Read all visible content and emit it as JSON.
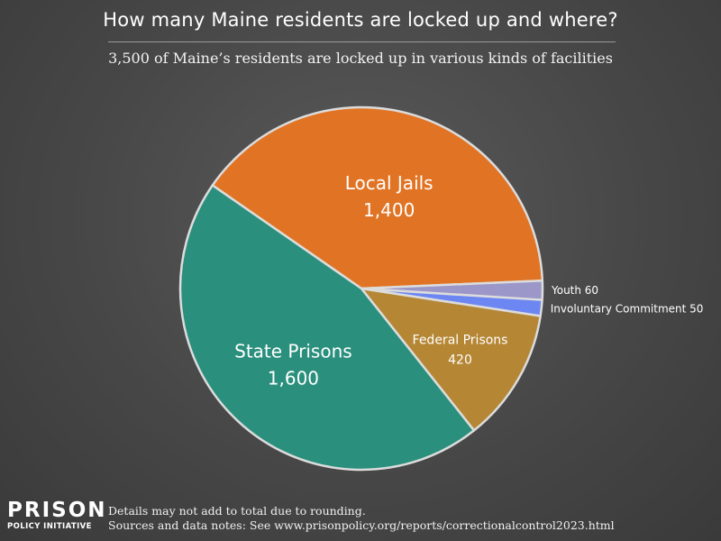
{
  "header": {
    "title": "How many Maine residents are locked up and where?",
    "subtitle": "3,500 of Maine’s residents are locked up in various kinds of facilities"
  },
  "footer": {
    "logo_line1": "PRISON",
    "logo_line2": "POLICY INITIATIVE",
    "note1": "Details may not add to total due to rounding.",
    "note2": "Sources and data notes: See www.prisonpolicy.org/reports/correctionalcontrol2023.html"
  },
  "chart_data": {
    "type": "pie",
    "title": "How many Maine residents are locked up and where?",
    "subtitle": "3,500 of Maine’s residents are locked up in various kinds of facilities",
    "slices": [
      {
        "label": "Local Jails",
        "value": 1400,
        "value_label": "1,400",
        "color": "#e17424",
        "label_style": "inside-large"
      },
      {
        "label": "Youth",
        "value": 60,
        "value_label": "60",
        "color": "#9b97c9",
        "label_style": "outside"
      },
      {
        "label": "Involuntary Commitment",
        "value": 50,
        "value_label": "50",
        "color": "#6c86f2",
        "label_style": "outside"
      },
      {
        "label": "Federal Prisons",
        "value": 420,
        "value_label": "420",
        "color": "#b58735",
        "label_style": "inside-small"
      },
      {
        "label": "State Prisons",
        "value": 1600,
        "value_label": "1,600",
        "color": "#2a8f7c",
        "label_style": "inside-large"
      }
    ],
    "start_angle_deg": 51,
    "direction": "clockwise"
  }
}
